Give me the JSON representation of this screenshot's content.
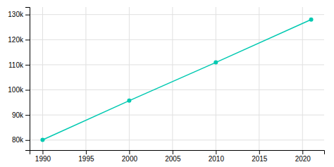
{
  "chart_data": {
    "type": "line",
    "x": [
      1990,
      2000,
      2010,
      2021
    ],
    "values": [
      80071,
      95694,
      110925,
      128026
    ],
    "color": "#00c9b1",
    "marker": "circle",
    "xlim": [
      1988.5,
      2022.5
    ],
    "ylim": [
      76000,
      133000
    ],
    "xticks": [
      1990,
      1995,
      2000,
      2005,
      2010,
      2015,
      2020
    ],
    "yticks": [
      {
        "value": 80000,
        "label": "80k"
      },
      {
        "value": 90000,
        "label": "90k"
      },
      {
        "value": 100000,
        "label": "100k"
      },
      {
        "value": 110000,
        "label": "110k"
      },
      {
        "value": 120000,
        "label": "120k"
      },
      {
        "value": 130000,
        "label": "130k"
      }
    ],
    "grid": true
  }
}
